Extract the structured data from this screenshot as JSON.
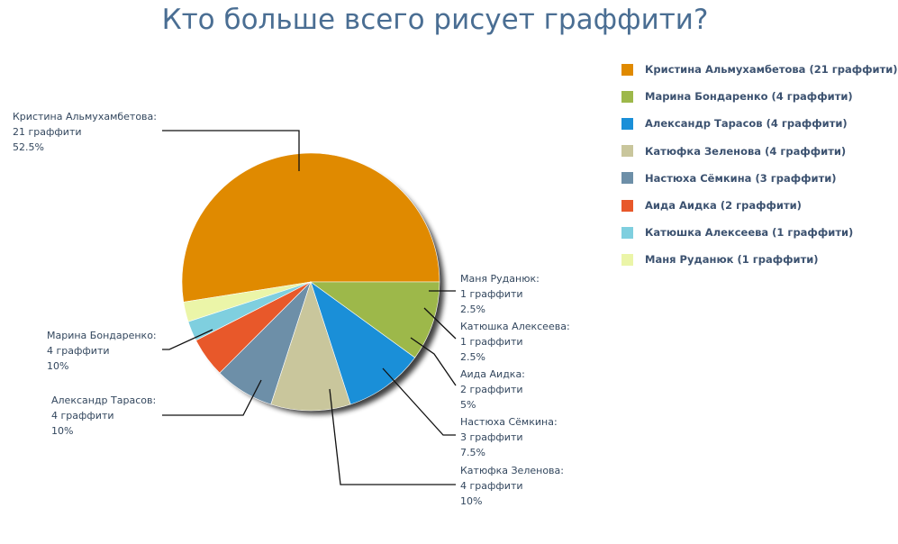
{
  "chart_data": {
    "type": "pie",
    "title": "Кто больше всего рисует граффити?",
    "slices": [
      {
        "name": "Кристина Альмухамбетова",
        "value": 21,
        "percent": "52.5%",
        "label_name": "Кристина Альмухамбетова:",
        "label_count": "21 граффити",
        "legend": "Кристина Альмухамбетова (21 граффити)",
        "color": "#e08a00"
      },
      {
        "name": "Маня Руданюк",
        "value": 1,
        "percent": "2.5%",
        "label_name": "Маня Руданюк:",
        "label_count": "1 граффити",
        "legend": "Маня Руданюк (1 граффити)",
        "color": "#ebf5a8"
      },
      {
        "name": "Катюшка Алексеева",
        "value": 1,
        "percent": "2.5%",
        "label_name": "Катюшка Алексеева:",
        "label_count": "1 граффити",
        "legend": "Катюшка Алексеева (1 граффити)",
        "color": "#7fcfdf"
      },
      {
        "name": "Аида Аидка",
        "value": 2,
        "percent": "5%",
        "label_name": "Аида Аидка:",
        "label_count": "2 граффити",
        "legend": "Аида Аидка (2 граффити)",
        "color": "#e8582a"
      },
      {
        "name": "Настюха Сёмкина",
        "value": 3,
        "percent": "7.5%",
        "label_name": "Настюха Сёмкина:",
        "label_count": "3 граффити",
        "legend": "Настюха Сёмкина (3 граффити)",
        "color": "#6d8fa8"
      },
      {
        "name": "Катюфка Зеленова",
        "value": 4,
        "percent": "10%",
        "label_name": "Катюфка Зеленова:",
        "label_count": "4 граффити",
        "legend": "Катюфка Зеленова (4 граффити)",
        "color": "#c9c69c"
      },
      {
        "name": "Александр Тарасов",
        "value": 4,
        "percent": "10%",
        "label_name": "Александр Тарасов:",
        "label_count": "4 граффити",
        "legend": "Александр Тарасов (4 граффити)",
        "color": "#1a8fd8"
      },
      {
        "name": "Марина Бондаренко",
        "value": 4,
        "percent": "10%",
        "label_name": "Марина Бондаренко:",
        "label_count": "4 граффити",
        "legend": "Марина Бондаренко (4 граффити)",
        "color": "#9db84a"
      }
    ],
    "legend_order": [
      "Кристина Альмухамбетова",
      "Марина Бондаренко",
      "Александр Тарасов",
      "Катюфка Зеленова",
      "Настюха Сёмкина",
      "Аида Аидка",
      "Катюшка Алексеева",
      "Маня Руданюк"
    ],
    "legend_position": "right"
  }
}
